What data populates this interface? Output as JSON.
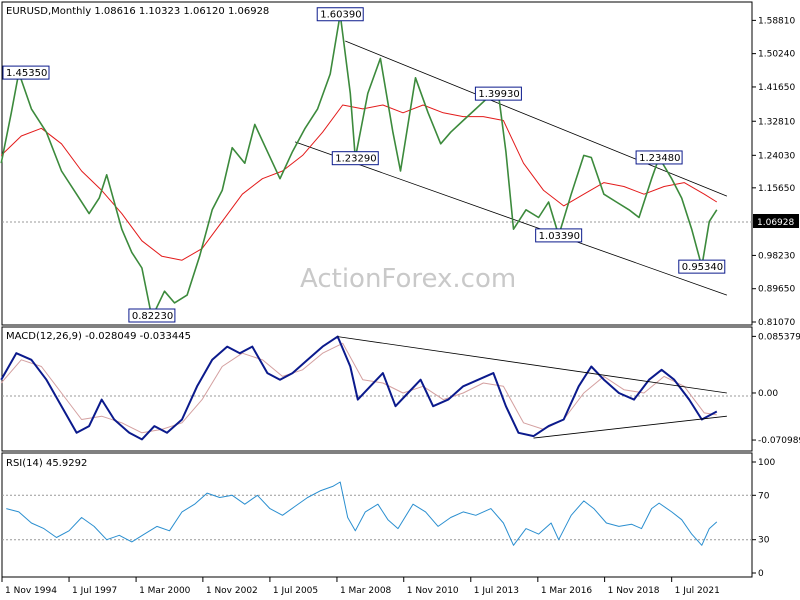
{
  "chart_data": [
    {
      "type": "candlestick",
      "header": "EURUSD,Monthly  1.08616 1.10323 1.06120 1.06928",
      "watermark": "ActionForex.com",
      "ylim": [
        0.8107,
        1.62
      ],
      "y_ticks": [
        "1.58810",
        "1.50240",
        "1.41650",
        "1.32810",
        "1.24030",
        "1.15650",
        "0.98230",
        "0.89650",
        "0.81070"
      ],
      "current_price": "1.06928",
      "price_path": [
        [
          1994.8,
          1.22
        ],
        [
          1995.2,
          1.35
        ],
        [
          1995.5,
          1.4535
        ],
        [
          1996.0,
          1.36
        ],
        [
          1996.6,
          1.3
        ],
        [
          1997.2,
          1.2
        ],
        [
          1997.8,
          1.14
        ],
        [
          1998.3,
          1.09
        ],
        [
          1998.7,
          1.13
        ],
        [
          1999.0,
          1.19
        ],
        [
          1999.6,
          1.05
        ],
        [
          2000.0,
          0.99
        ],
        [
          2000.4,
          0.95
        ],
        [
          2000.8,
          0.8223
        ],
        [
          2001.3,
          0.89
        ],
        [
          2001.7,
          0.86
        ],
        [
          2002.2,
          0.88
        ],
        [
          2002.7,
          0.98
        ],
        [
          2003.2,
          1.1
        ],
        [
          2003.6,
          1.15
        ],
        [
          2004.0,
          1.26
        ],
        [
          2004.5,
          1.22
        ],
        [
          2004.9,
          1.32
        ],
        [
          2005.4,
          1.25
        ],
        [
          2005.9,
          1.18
        ],
        [
          2006.4,
          1.25
        ],
        [
          2006.9,
          1.31
        ],
        [
          2007.4,
          1.36
        ],
        [
          2007.9,
          1.45
        ],
        [
          2008.3,
          1.6039
        ],
        [
          2008.7,
          1.4
        ],
        [
          2008.9,
          1.2329
        ],
        [
          2009.4,
          1.4
        ],
        [
          2009.9,
          1.49
        ],
        [
          2010.4,
          1.3
        ],
        [
          2010.7,
          1.2
        ],
        [
          2011.3,
          1.44
        ],
        [
          2011.8,
          1.35
        ],
        [
          2012.3,
          1.27
        ],
        [
          2012.7,
          1.3
        ],
        [
          2013.2,
          1.33
        ],
        [
          2013.7,
          1.36
        ],
        [
          2014.2,
          1.39
        ],
        [
          2014.6,
          1.3993
        ],
        [
          2014.9,
          1.25
        ],
        [
          2015.2,
          1.05
        ],
        [
          2015.7,
          1.1
        ],
        [
          2016.2,
          1.08
        ],
        [
          2016.6,
          1.12
        ],
        [
          2017.0,
          1.0339
        ],
        [
          2017.5,
          1.14
        ],
        [
          2018.0,
          1.24
        ],
        [
          2018.3,
          1.2348
        ],
        [
          2018.8,
          1.14
        ],
        [
          2019.3,
          1.12
        ],
        [
          2019.8,
          1.1
        ],
        [
          2020.2,
          1.08
        ],
        [
          2020.7,
          1.18
        ],
        [
          2021.0,
          1.2348
        ],
        [
          2021.5,
          1.18
        ],
        [
          2021.9,
          1.13
        ],
        [
          2022.3,
          1.05
        ],
        [
          2022.7,
          0.9534
        ],
        [
          2023.0,
          1.07
        ],
        [
          2023.3,
          1.1
        ]
      ],
      "ma_path": [
        [
          1994.8,
          1.24
        ],
        [
          1995.6,
          1.29
        ],
        [
          1996.4,
          1.31
        ],
        [
          1997.2,
          1.27
        ],
        [
          1998.0,
          1.2
        ],
        [
          1998.8,
          1.15
        ],
        [
          1999.6,
          1.09
        ],
        [
          2000.4,
          1.02
        ],
        [
          2001.2,
          0.98
        ],
        [
          2002.0,
          0.97
        ],
        [
          2002.8,
          1.0
        ],
        [
          2003.6,
          1.07
        ],
        [
          2004.4,
          1.14
        ],
        [
          2005.2,
          1.18
        ],
        [
          2006.0,
          1.2
        ],
        [
          2006.8,
          1.24
        ],
        [
          2007.6,
          1.3
        ],
        [
          2008.4,
          1.37
        ],
        [
          2009.2,
          1.36
        ],
        [
          2010.0,
          1.37
        ],
        [
          2010.8,
          1.35
        ],
        [
          2011.6,
          1.37
        ],
        [
          2012.4,
          1.35
        ],
        [
          2013.2,
          1.34
        ],
        [
          2014.0,
          1.34
        ],
        [
          2014.8,
          1.33
        ],
        [
          2015.6,
          1.22
        ],
        [
          2016.4,
          1.15
        ],
        [
          2017.2,
          1.11
        ],
        [
          2018.0,
          1.14
        ],
        [
          2018.8,
          1.17
        ],
        [
          2019.6,
          1.16
        ],
        [
          2020.4,
          1.14
        ],
        [
          2021.2,
          1.16
        ],
        [
          2022.0,
          1.17
        ],
        [
          2022.8,
          1.14
        ],
        [
          2023.3,
          1.12
        ]
      ],
      "trendlines": [
        {
          "from": [
            2008.5,
            1.535
          ],
          "to": [
            2023.7,
            1.135
          ]
        },
        {
          "from": [
            2006.5,
            1.275
          ],
          "to": [
            2023.7,
            0.88
          ]
        }
      ],
      "labels": [
        {
          "text": "1.45350",
          "x": 1995.5,
          "y": 1.4535
        },
        {
          "text": "0.82230",
          "x": 2000.8,
          "y": 0.8223
        },
        {
          "text": "1.60390",
          "x": 2008.3,
          "y": 1.6039
        },
        {
          "text": "1.23290",
          "x": 2008.9,
          "y": 1.2329
        },
        {
          "text": "1.39930",
          "x": 2014.6,
          "y": 1.3993
        },
        {
          "text": "1.03390",
          "x": 2017.0,
          "y": 1.0339
        },
        {
          "text": "1.23480",
          "x": 2021.0,
          "y": 1.2348
        },
        {
          "text": "0.95340",
          "x": 2022.7,
          "y": 0.9534
        }
      ]
    },
    {
      "type": "line",
      "header": "MACD(12,26,9) -0.028049 -0.033445",
      "ylim": [
        -0.083,
        0.095
      ],
      "y_ticks": [
        "0.085379",
        "0.00",
        "-0.070989"
      ],
      "zero_level": 0,
      "macd": [
        [
          1994.8,
          0.02
        ],
        [
          1995.4,
          0.06
        ],
        [
          1996.0,
          0.05
        ],
        [
          1996.6,
          0.02
        ],
        [
          1997.2,
          -0.02
        ],
        [
          1997.8,
          -0.06
        ],
        [
          1998.3,
          -0.05
        ],
        [
          1998.8,
          -0.01
        ],
        [
          1999.3,
          -0.04
        ],
        [
          1999.9,
          -0.06
        ],
        [
          2000.4,
          -0.07
        ],
        [
          2000.9,
          -0.05
        ],
        [
          2001.4,
          -0.06
        ],
        [
          2002.0,
          -0.04
        ],
        [
          2002.6,
          0.01
        ],
        [
          2003.2,
          0.05
        ],
        [
          2003.8,
          0.07
        ],
        [
          2004.3,
          0.06
        ],
        [
          2004.8,
          0.07
        ],
        [
          2005.4,
          0.03
        ],
        [
          2005.9,
          0.02
        ],
        [
          2006.4,
          0.03
        ],
        [
          2007.0,
          0.05
        ],
        [
          2007.6,
          0.07
        ],
        [
          2008.2,
          0.085
        ],
        [
          2008.7,
          0.04
        ],
        [
          2009.0,
          -0.01
        ],
        [
          2009.5,
          0.01
        ],
        [
          2010.0,
          0.03
        ],
        [
          2010.5,
          -0.02
        ],
        [
          2011.0,
          0.0
        ],
        [
          2011.5,
          0.02
        ],
        [
          2012.0,
          -0.02
        ],
        [
          2012.6,
          -0.01
        ],
        [
          2013.2,
          0.01
        ],
        [
          2013.8,
          0.02
        ],
        [
          2014.4,
          0.03
        ],
        [
          2014.9,
          -0.02
        ],
        [
          2015.4,
          -0.06
        ],
        [
          2016.0,
          -0.065
        ],
        [
          2016.6,
          -0.05
        ],
        [
          2017.2,
          -0.04
        ],
        [
          2017.8,
          0.01
        ],
        [
          2018.3,
          0.04
        ],
        [
          2018.8,
          0.02
        ],
        [
          2019.4,
          0.0
        ],
        [
          2020.0,
          -0.01
        ],
        [
          2020.6,
          0.02
        ],
        [
          2021.1,
          0.035
        ],
        [
          2021.6,
          0.02
        ],
        [
          2022.2,
          -0.01
        ],
        [
          2022.7,
          -0.04
        ],
        [
          2023.3,
          -0.028
        ]
      ],
      "signal": [
        [
          1994.8,
          0.015
        ],
        [
          1995.6,
          0.05
        ],
        [
          1996.4,
          0.04
        ],
        [
          1997.2,
          0.0
        ],
        [
          1998.0,
          -0.04
        ],
        [
          1998.8,
          -0.035
        ],
        [
          1999.6,
          -0.045
        ],
        [
          2000.4,
          -0.06
        ],
        [
          2001.2,
          -0.055
        ],
        [
          2002.0,
          -0.045
        ],
        [
          2002.8,
          -0.01
        ],
        [
          2003.6,
          0.04
        ],
        [
          2004.4,
          0.06
        ],
        [
          2005.2,
          0.05
        ],
        [
          2006.0,
          0.025
        ],
        [
          2006.8,
          0.035
        ],
        [
          2007.6,
          0.06
        ],
        [
          2008.4,
          0.075
        ],
        [
          2009.2,
          0.02
        ],
        [
          2010.0,
          0.015
        ],
        [
          2010.8,
          0.0
        ],
        [
          2011.6,
          0.01
        ],
        [
          2012.4,
          -0.01
        ],
        [
          2013.2,
          0.0
        ],
        [
          2014.0,
          0.015
        ],
        [
          2014.8,
          0.01
        ],
        [
          2015.6,
          -0.045
        ],
        [
          2016.4,
          -0.055
        ],
        [
          2017.2,
          -0.04
        ],
        [
          2018.0,
          0.0
        ],
        [
          2018.8,
          0.025
        ],
        [
          2019.6,
          0.005
        ],
        [
          2020.4,
          0.0
        ],
        [
          2021.2,
          0.025
        ],
        [
          2022.0,
          0.01
        ],
        [
          2022.8,
          -0.03
        ],
        [
          2023.3,
          -0.033
        ]
      ],
      "trendlines": [
        {
          "from": [
            2008.2,
            0.085
          ],
          "to": [
            2023.7,
            0.0
          ]
        },
        {
          "from": [
            2016.0,
            -0.068
          ],
          "to": [
            2023.7,
            -0.035
          ]
        }
      ]
    },
    {
      "type": "line",
      "header": "RSI(14) 45.9292",
      "ylim": [
        0,
        100
      ],
      "y_ticks": [
        "100",
        "70",
        "30",
        "0"
      ],
      "levels": [
        70,
        30
      ],
      "rsi": [
        [
          1995.0,
          58
        ],
        [
          1995.5,
          55
        ],
        [
          1996.0,
          45
        ],
        [
          1996.5,
          40
        ],
        [
          1997.0,
          32
        ],
        [
          1997.5,
          38
        ],
        [
          1998.0,
          50
        ],
        [
          1998.5,
          42
        ],
        [
          1999.0,
          30
        ],
        [
          1999.5,
          34
        ],
        [
          2000.0,
          28
        ],
        [
          2000.5,
          35
        ],
        [
          2001.0,
          42
        ],
        [
          2001.5,
          38
        ],
        [
          2002.0,
          55
        ],
        [
          2002.5,
          62
        ],
        [
          2003.0,
          72
        ],
        [
          2003.5,
          68
        ],
        [
          2004.0,
          70
        ],
        [
          2004.5,
          62
        ],
        [
          2005.0,
          70
        ],
        [
          2005.5,
          58
        ],
        [
          2006.0,
          52
        ],
        [
          2006.5,
          60
        ],
        [
          2007.0,
          68
        ],
        [
          2007.5,
          74
        ],
        [
          2008.0,
          78
        ],
        [
          2008.3,
          82
        ],
        [
          2008.6,
          50
        ],
        [
          2008.9,
          38
        ],
        [
          2009.3,
          55
        ],
        [
          2009.8,
          62
        ],
        [
          2010.2,
          48
        ],
        [
          2010.6,
          40
        ],
        [
          2011.2,
          62
        ],
        [
          2011.7,
          55
        ],
        [
          2012.2,
          42
        ],
        [
          2012.7,
          50
        ],
        [
          2013.2,
          55
        ],
        [
          2013.7,
          52
        ],
        [
          2014.3,
          58
        ],
        [
          2014.8,
          45
        ],
        [
          2015.2,
          25
        ],
        [
          2015.7,
          40
        ],
        [
          2016.2,
          35
        ],
        [
          2016.7,
          45
        ],
        [
          2017.0,
          30
        ],
        [
          2017.5,
          52
        ],
        [
          2018.0,
          65
        ],
        [
          2018.4,
          58
        ],
        [
          2018.9,
          45
        ],
        [
          2019.4,
          42
        ],
        [
          2019.9,
          44
        ],
        [
          2020.3,
          40
        ],
        [
          2020.7,
          58
        ],
        [
          2021.0,
          63
        ],
        [
          2021.5,
          55
        ],
        [
          2021.9,
          48
        ],
        [
          2022.3,
          35
        ],
        [
          2022.7,
          25
        ],
        [
          2023.0,
          40
        ],
        [
          2023.3,
          46
        ]
      ]
    },
    {
      "type": "axis",
      "x_range": [
        1994.83,
        2024.7
      ],
      "x_ticks": [
        {
          "label": "1 Nov 1994",
          "x": 1994.83
        },
        {
          "label": "1 Jul 1997",
          "x": 1997.5
        },
        {
          "label": "1 Mar 2000",
          "x": 2000.17
        },
        {
          "label": "1 Nov 2002",
          "x": 2002.83
        },
        {
          "label": "1 Jul 2005",
          "x": 2005.5
        },
        {
          "label": "1 Mar 2008",
          "x": 2008.17
        },
        {
          "label": "1 Nov 2010",
          "x": 2010.83
        },
        {
          "label": "1 Jul 2013",
          "x": 2013.5
        },
        {
          "label": "1 Mar 2016",
          "x": 2016.17
        },
        {
          "label": "1 Nov 2018",
          "x": 2018.83
        },
        {
          "label": "1 Jul 2021",
          "x": 2021.5
        }
      ]
    }
  ],
  "colors": {
    "price": "#3c8a3c",
    "ma": "#e31b1b",
    "macd": "#0b1a8c",
    "signal": "#d4a0a0",
    "rsi": "#2b8fd0",
    "trend": "#000000",
    "label_border": "#0b1a8c",
    "grid": "#999999"
  }
}
